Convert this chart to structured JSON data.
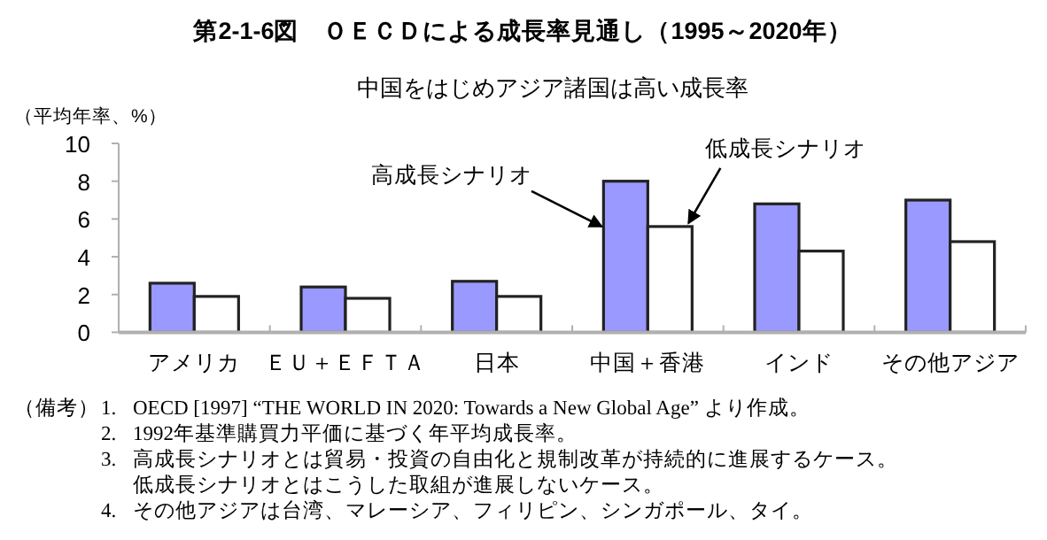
{
  "chart_data": {
    "type": "bar",
    "title": "第2-1-6図　ＯＥＣＤによる成長率見通し（1995～2020年）",
    "subtitle": "中国をはじめアジア諸国は高い成長率",
    "ylabel": "（平均年率、%）",
    "categories": [
      "アメリカ",
      "ＥＵ＋ＥＦＴＡ",
      "日本",
      "中国＋香港",
      "インド",
      "その他アジア"
    ],
    "series": [
      {
        "name": "高成長シナリオ",
        "color": "#9999ff",
        "values": [
          2.6,
          2.4,
          2.7,
          8.0,
          6.8,
          7.0
        ]
      },
      {
        "name": "低成長シナリオ",
        "color": "#ffffff",
        "values": [
          1.9,
          1.8,
          1.9,
          5.6,
          4.3,
          4.8
        ]
      }
    ],
    "ylim": [
      0,
      10
    ],
    "yticks": [
      0,
      2,
      4,
      6,
      8,
      10
    ],
    "grid": false,
    "annotations": [
      "（備考）",
      "1. OECD [1997] “THE WORLD IN 2020: Towards a New Global Age” より作成。",
      "2. 1992年基準購買力平価に基づく年平均成長率。",
      "3. 高成長シナリオとは貿易・投資の自由化と規制改革が持続的に進展するケース。",
      "低成長シナリオとはこうした取組が進展しないケース。",
      "4. その他アジアは台湾、マレーシア、フィリピン、シンガポール、タイ。"
    ]
  }
}
